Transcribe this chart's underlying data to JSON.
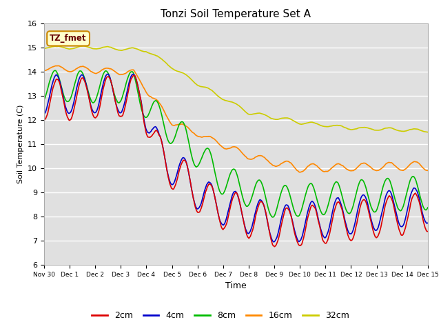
{
  "title": "Tonzi Soil Temperature Set A",
  "xlabel": "Time",
  "ylabel": "Soil Temperature (C)",
  "ylim": [
    6.0,
    16.0
  ],
  "yticks": [
    6.0,
    7.0,
    8.0,
    9.0,
    10.0,
    11.0,
    12.0,
    13.0,
    14.0,
    15.0,
    16.0
  ],
  "plot_bg_color": "#e0e0e0",
  "legend_label": "TZ_fmet",
  "legend_box_color": "#ffffcc",
  "legend_box_edge": "#cc8800",
  "series": {
    "2cm": {
      "color": "#dd0000",
      "lw": 1.2
    },
    "4cm": {
      "color": "#0000cc",
      "lw": 1.2
    },
    "8cm": {
      "color": "#00bb00",
      "lw": 1.2
    },
    "16cm": {
      "color": "#ff8800",
      "lw": 1.2
    },
    "32cm": {
      "color": "#cccc00",
      "lw": 1.2
    }
  },
  "xtick_labels": [
    "Nov 30",
    "Dec 1",
    "Dec 2",
    "Dec 3",
    "Dec 4",
    "Dec 5",
    "Dec 6",
    "Dec 7",
    "Dec 8",
    "Dec 9",
    "Dec 10",
    "Dec 11",
    "Dec 12",
    "Dec 13",
    "Dec 14",
    "Dec 15"
  ],
  "n_points": 721
}
